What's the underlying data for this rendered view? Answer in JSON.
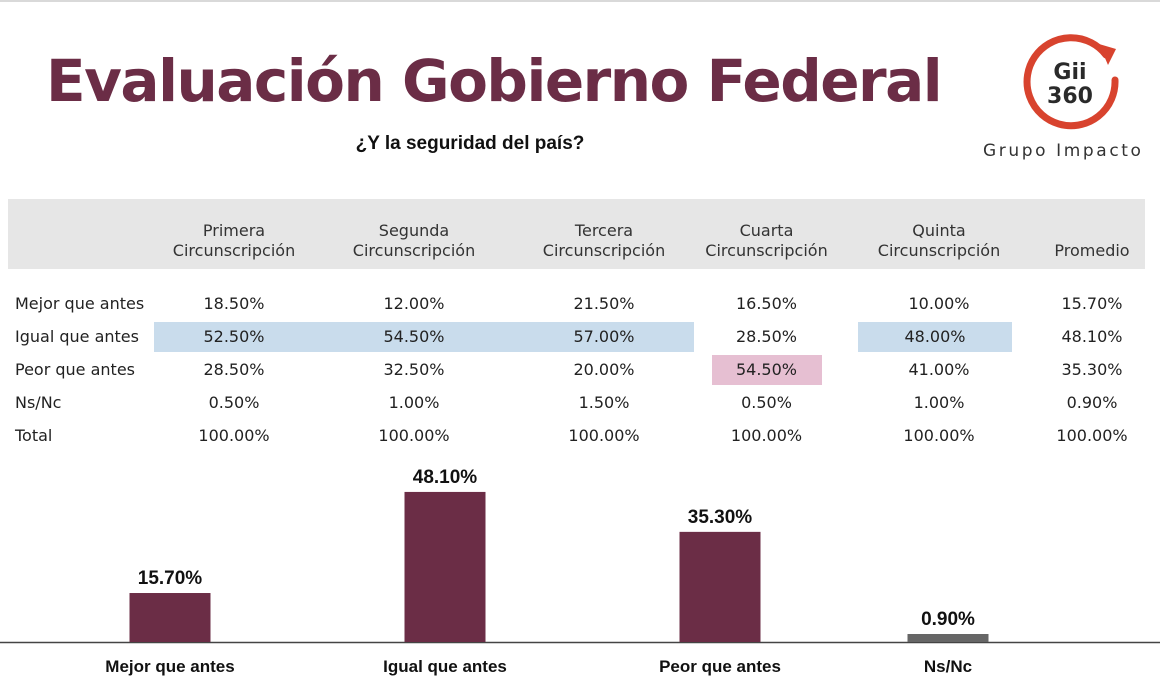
{
  "header": {
    "title": "Evaluación Gobierno Federal",
    "subtitle": "¿Y la seguridad del país?"
  },
  "logo": {
    "mark_line1": "Gii",
    "mark_line2": "360",
    "brand": "Grupo Impacto",
    "ring_color": "#d8432e"
  },
  "table": {
    "columns": [
      {
        "line1": "",
        "line2": ""
      },
      {
        "line1": "Primera",
        "line2": "Circunscripción"
      },
      {
        "line1": "Segunda",
        "line2": "Circunscripción"
      },
      {
        "line1": "Tercera",
        "line2": "Circunscripción"
      },
      {
        "line1": "Cuarta",
        "line2": "Circunscripción"
      },
      {
        "line1": "Quinta",
        "line2": "Circunscripción"
      },
      {
        "line1": "",
        "line2": "Promedio"
      }
    ],
    "rows": [
      {
        "label": "Mejor que antes",
        "values": [
          "18.50%",
          "12.00%",
          "21.50%",
          "16.50%",
          "10.00%",
          "15.70%"
        ]
      },
      {
        "label": "Igual que antes",
        "values": [
          "52.50%",
          "54.50%",
          "57.00%",
          "28.50%",
          "48.00%",
          "48.10%"
        ]
      },
      {
        "label": "Peor que antes",
        "values": [
          "28.50%",
          "32.50%",
          "20.00%",
          "54.50%",
          "41.00%",
          "35.30%"
        ]
      },
      {
        "label": "Ns/Nc",
        "values": [
          "0.50%",
          "1.00%",
          "1.50%",
          "0.50%",
          "1.00%",
          "0.90%"
        ]
      },
      {
        "label": "Total",
        "values": [
          "100.00%",
          "100.00%",
          "100.00%",
          "100.00%",
          "100.00%",
          "100.00%"
        ]
      }
    ],
    "highlight_colors": {
      "blue": "#c9dcec",
      "pink": "#e6bfd2"
    }
  },
  "chart_data": {
    "type": "bar",
    "categories": [
      "Mejor que antes",
      "Igual que antes",
      "Peor que antes",
      "Ns/Nc"
    ],
    "values": [
      15.7,
      48.1,
      35.3,
      0.9
    ],
    "value_labels": [
      "15.70%",
      "48.10%",
      "35.30%",
      "0.90%"
    ],
    "colors": [
      "#6b2d46",
      "#6b2d46",
      "#6b2d46",
      "#666666"
    ],
    "title": "",
    "xlabel": "",
    "ylabel": "",
    "ylim": [
      0,
      50
    ],
    "grid": false,
    "legend": "none"
  }
}
